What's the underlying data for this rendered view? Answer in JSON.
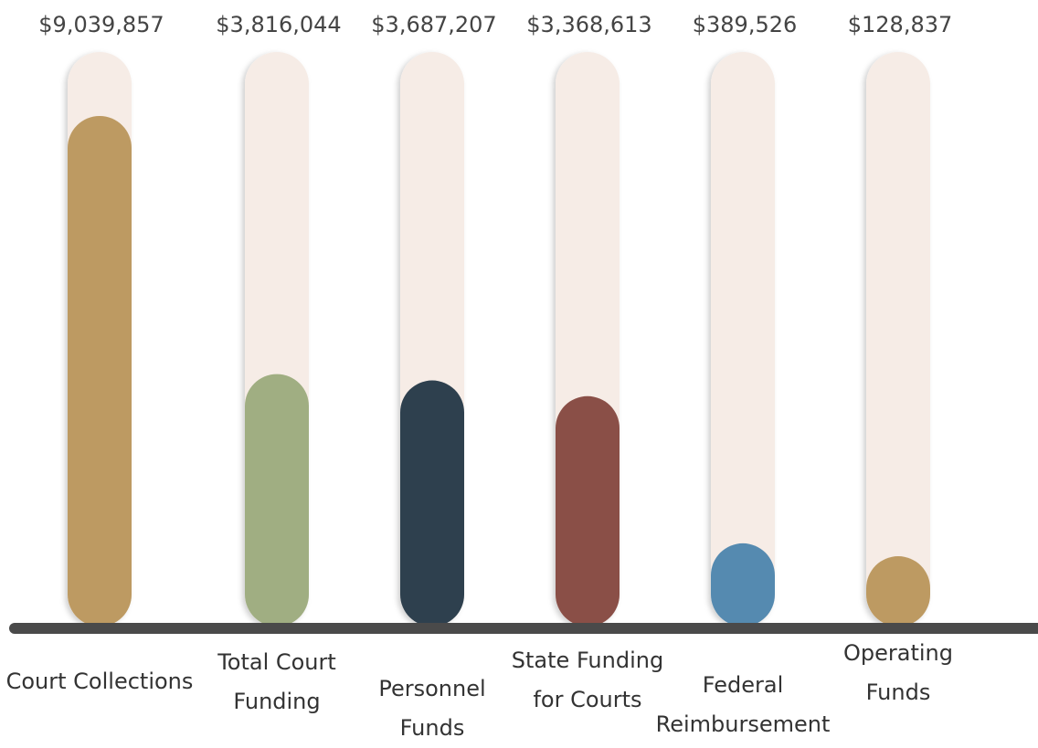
{
  "chart_data": {
    "type": "bar",
    "categories": [
      "Court Collections",
      "Total Court Funding",
      "Personnel Funds",
      "State Funding for Courts",
      "Federal Reimbursement",
      "Operating Funds"
    ],
    "values": [
      9039857,
      3816044,
      3687207,
      3368613,
      389526,
      128837
    ],
    "value_labels": [
      "$9,039,857",
      "$3,816,044",
      "$3,687,207",
      "$3,368,613",
      "$389,526",
      "$128,837"
    ],
    "colors": [
      "#bd9a62",
      "#a0ae82",
      "#2e404e",
      "#8a4f47",
      "#558ab0",
      "#bd9a62"
    ],
    "track_color": "#f6ece6"
  }
}
